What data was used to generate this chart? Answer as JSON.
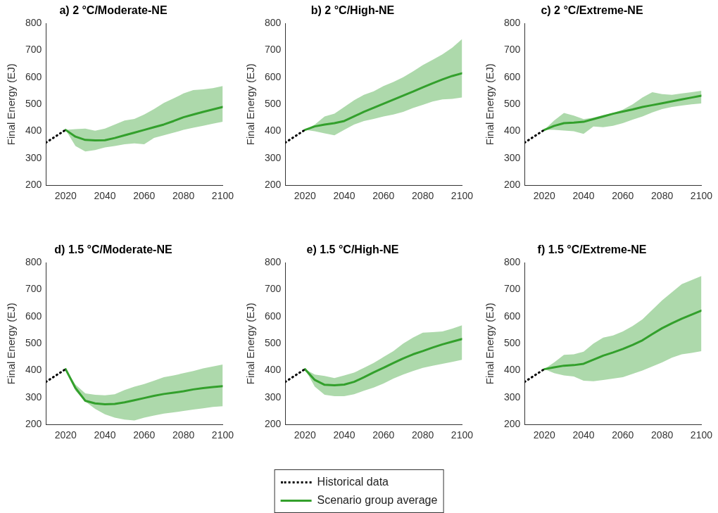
{
  "chart_data": [
    {
      "type": "line",
      "title": "a) 2 °C/Moderate-NE",
      "ylabel": "Final Energy (EJ)",
      "xlim": [
        2010,
        2100
      ],
      "xticks": [
        2020,
        2040,
        2060,
        2080,
        2100
      ],
      "ylim": [
        200,
        800
      ],
      "yticks": [
        200,
        300,
        400,
        500,
        600,
        700,
        800
      ],
      "grid": false,
      "marker": "none",
      "x": [
        2010,
        2020,
        2025,
        2030,
        2035,
        2040,
        2045,
        2050,
        2055,
        2060,
        2065,
        2070,
        2075,
        2080,
        2085,
        2090,
        2095,
        2100
      ],
      "series": [
        {
          "color": "#000000",
          "line_style": "dotted",
          "values": [
            358,
            405,
            null,
            null,
            null,
            null,
            null,
            null,
            null,
            null,
            null,
            null,
            null,
            null,
            null,
            null,
            null,
            null
          ]
        },
        {
          "color": "#33a02c",
          "line_style": "solid",
          "values": [
            null,
            405,
            380,
            368,
            366,
            367,
            375,
            385,
            395,
            405,
            415,
            425,
            438,
            452,
            462,
            472,
            481,
            490
          ],
          "lower": [
            null,
            405,
            345,
            325,
            330,
            340,
            345,
            352,
            355,
            352,
            375,
            385,
            395,
            405,
            413,
            420,
            428,
            435
          ],
          "upper": [
            null,
            405,
            408,
            410,
            402,
            410,
            425,
            440,
            446,
            462,
            482,
            505,
            522,
            540,
            553,
            555,
            560,
            568
          ]
        }
      ]
    },
    {
      "type": "line",
      "title": "b) 2 °C/High-NE",
      "ylabel": "Final Energy (EJ)",
      "xlim": [
        2010,
        2100
      ],
      "xticks": [
        2020,
        2040,
        2060,
        2080,
        2100
      ],
      "ylim": [
        200,
        800
      ],
      "yticks": [
        200,
        300,
        400,
        500,
        600,
        700,
        800
      ],
      "grid": false,
      "marker": "none",
      "x": [
        2010,
        2020,
        2025,
        2030,
        2035,
        2040,
        2045,
        2050,
        2055,
        2060,
        2065,
        2070,
        2075,
        2080,
        2085,
        2090,
        2095,
        2100
      ],
      "series": [
        {
          "color": "#000000",
          "line_style": "dotted",
          "values": [
            358,
            405,
            null,
            null,
            null,
            null,
            null,
            null,
            null,
            null,
            null,
            null,
            null,
            null,
            null,
            null,
            null,
            null
          ]
        },
        {
          "color": "#33a02c",
          "line_style": "solid",
          "values": [
            null,
            405,
            418,
            425,
            430,
            438,
            455,
            472,
            487,
            502,
            517,
            532,
            547,
            563,
            578,
            592,
            605,
            615
          ],
          "lower": [
            null,
            405,
            400,
            392,
            385,
            405,
            425,
            438,
            446,
            455,
            462,
            472,
            486,
            498,
            510,
            518,
            520,
            525
          ],
          "upper": [
            null,
            405,
            425,
            455,
            465,
            490,
            515,
            535,
            548,
            568,
            583,
            600,
            622,
            645,
            665,
            685,
            710,
            742
          ]
        }
      ]
    },
    {
      "type": "line",
      "title": "c) 2 °C/Extreme-NE",
      "ylabel": "Final Energy (EJ)",
      "xlim": [
        2010,
        2100
      ],
      "xticks": [
        2020,
        2040,
        2060,
        2080,
        2100
      ],
      "ylim": [
        200,
        800
      ],
      "yticks": [
        200,
        300,
        400,
        500,
        600,
        700,
        800
      ],
      "grid": false,
      "marker": "none",
      "x": [
        2010,
        2020,
        2025,
        2030,
        2035,
        2040,
        2045,
        2050,
        2055,
        2060,
        2065,
        2070,
        2075,
        2080,
        2085,
        2090,
        2095,
        2100
      ],
      "series": [
        {
          "color": "#000000",
          "line_style": "dotted",
          "values": [
            358,
            405,
            null,
            null,
            null,
            null,
            null,
            null,
            null,
            null,
            null,
            null,
            null,
            null,
            null,
            null,
            null,
            null
          ]
        },
        {
          "color": "#33a02c",
          "line_style": "solid",
          "values": [
            null,
            405,
            420,
            430,
            432,
            435,
            445,
            455,
            465,
            473,
            481,
            490,
            497,
            504,
            511,
            518,
            525,
            532
          ],
          "lower": [
            null,
            405,
            405,
            403,
            400,
            390,
            418,
            415,
            420,
            430,
            443,
            455,
            470,
            482,
            490,
            495,
            500,
            503
          ],
          "upper": [
            null,
            405,
            440,
            468,
            458,
            445,
            450,
            460,
            468,
            480,
            500,
            525,
            545,
            538,
            535,
            540,
            545,
            550
          ]
        }
      ]
    },
    {
      "type": "line",
      "title": "d) 1.5 °C/Moderate-NE",
      "ylabel": "Final Energy (EJ)",
      "xlim": [
        2010,
        2100
      ],
      "xticks": [
        2020,
        2040,
        2060,
        2080,
        2100
      ],
      "ylim": [
        200,
        800
      ],
      "yticks": [
        200,
        300,
        400,
        500,
        600,
        700,
        800
      ],
      "grid": false,
      "marker": "none",
      "x": [
        2010,
        2020,
        2025,
        2030,
        2035,
        2040,
        2045,
        2050,
        2055,
        2060,
        2065,
        2070,
        2075,
        2080,
        2085,
        2090,
        2095,
        2100
      ],
      "series": [
        {
          "color": "#000000",
          "line_style": "dotted",
          "values": [
            358,
            405,
            null,
            null,
            null,
            null,
            null,
            null,
            null,
            null,
            null,
            null,
            null,
            null,
            null,
            null,
            null,
            null
          ]
        },
        {
          "color": "#33a02c",
          "line_style": "solid",
          "values": [
            null,
            405,
            335,
            288,
            278,
            275,
            276,
            282,
            290,
            298,
            306,
            313,
            318,
            323,
            330,
            335,
            339,
            342
          ],
          "lower": [
            null,
            405,
            325,
            285,
            258,
            238,
            225,
            218,
            215,
            225,
            233,
            240,
            245,
            250,
            255,
            260,
            265,
            268
          ],
          "upper": [
            null,
            405,
            348,
            315,
            310,
            308,
            312,
            328,
            340,
            350,
            362,
            375,
            382,
            390,
            398,
            408,
            415,
            422
          ]
        }
      ]
    },
    {
      "type": "line",
      "title": "e) 1.5 °C/High-NE",
      "ylabel": "Final Energy (EJ)",
      "xlim": [
        2010,
        2100
      ],
      "xticks": [
        2020,
        2040,
        2060,
        2080,
        2100
      ],
      "ylim": [
        200,
        800
      ],
      "yticks": [
        200,
        300,
        400,
        500,
        600,
        700,
        800
      ],
      "grid": false,
      "marker": "none",
      "legend": "bottom",
      "x": [
        2010,
        2020,
        2025,
        2030,
        2035,
        2040,
        2045,
        2050,
        2055,
        2060,
        2065,
        2070,
        2075,
        2080,
        2085,
        2090,
        2095,
        2100
      ],
      "series": [
        {
          "name": "Historical data",
          "color": "#000000",
          "line_style": "dotted",
          "values": [
            358,
            405,
            null,
            null,
            null,
            null,
            null,
            null,
            null,
            null,
            null,
            null,
            null,
            null,
            null,
            null,
            null,
            null
          ]
        },
        {
          "name": "Scenario group average",
          "color": "#33a02c",
          "line_style": "solid",
          "values": [
            null,
            405,
            365,
            347,
            345,
            348,
            358,
            375,
            393,
            410,
            428,
            445,
            460,
            472,
            485,
            497,
            507,
            517
          ],
          "lower": [
            null,
            405,
            340,
            310,
            305,
            305,
            312,
            325,
            337,
            352,
            370,
            385,
            398,
            410,
            418,
            425,
            432,
            440
          ],
          "upper": [
            null,
            405,
            385,
            380,
            372,
            382,
            392,
            410,
            428,
            450,
            472,
            500,
            522,
            540,
            542,
            545,
            555,
            568
          ]
        }
      ]
    },
    {
      "type": "line",
      "title": "f) 1.5 °C/Extreme-NE",
      "ylabel": "Final Energy (EJ)",
      "xlim": [
        2010,
        2100
      ],
      "xticks": [
        2020,
        2040,
        2060,
        2080,
        2100
      ],
      "ylim": [
        200,
        800
      ],
      "yticks": [
        200,
        300,
        400,
        500,
        600,
        700,
        800
      ],
      "grid": false,
      "marker": "none",
      "x": [
        2010,
        2020,
        2025,
        2030,
        2035,
        2040,
        2045,
        2050,
        2055,
        2060,
        2065,
        2070,
        2075,
        2080,
        2085,
        2090,
        2095,
        2100
      ],
      "series": [
        {
          "color": "#000000",
          "line_style": "dotted",
          "values": [
            358,
            405,
            null,
            null,
            null,
            null,
            null,
            null,
            null,
            null,
            null,
            null,
            null,
            null,
            null,
            null,
            null,
            null
          ]
        },
        {
          "color": "#33a02c",
          "line_style": "solid",
          "values": [
            null,
            405,
            412,
            418,
            420,
            425,
            440,
            455,
            467,
            480,
            495,
            512,
            535,
            557,
            575,
            592,
            607,
            622
          ],
          "lower": [
            null,
            405,
            390,
            382,
            378,
            362,
            360,
            365,
            370,
            375,
            388,
            400,
            415,
            430,
            448,
            460,
            465,
            472
          ],
          "upper": [
            null,
            405,
            430,
            458,
            460,
            470,
            500,
            522,
            530,
            545,
            565,
            590,
            625,
            660,
            690,
            720,
            735,
            750
          ]
        }
      ]
    }
  ]
}
